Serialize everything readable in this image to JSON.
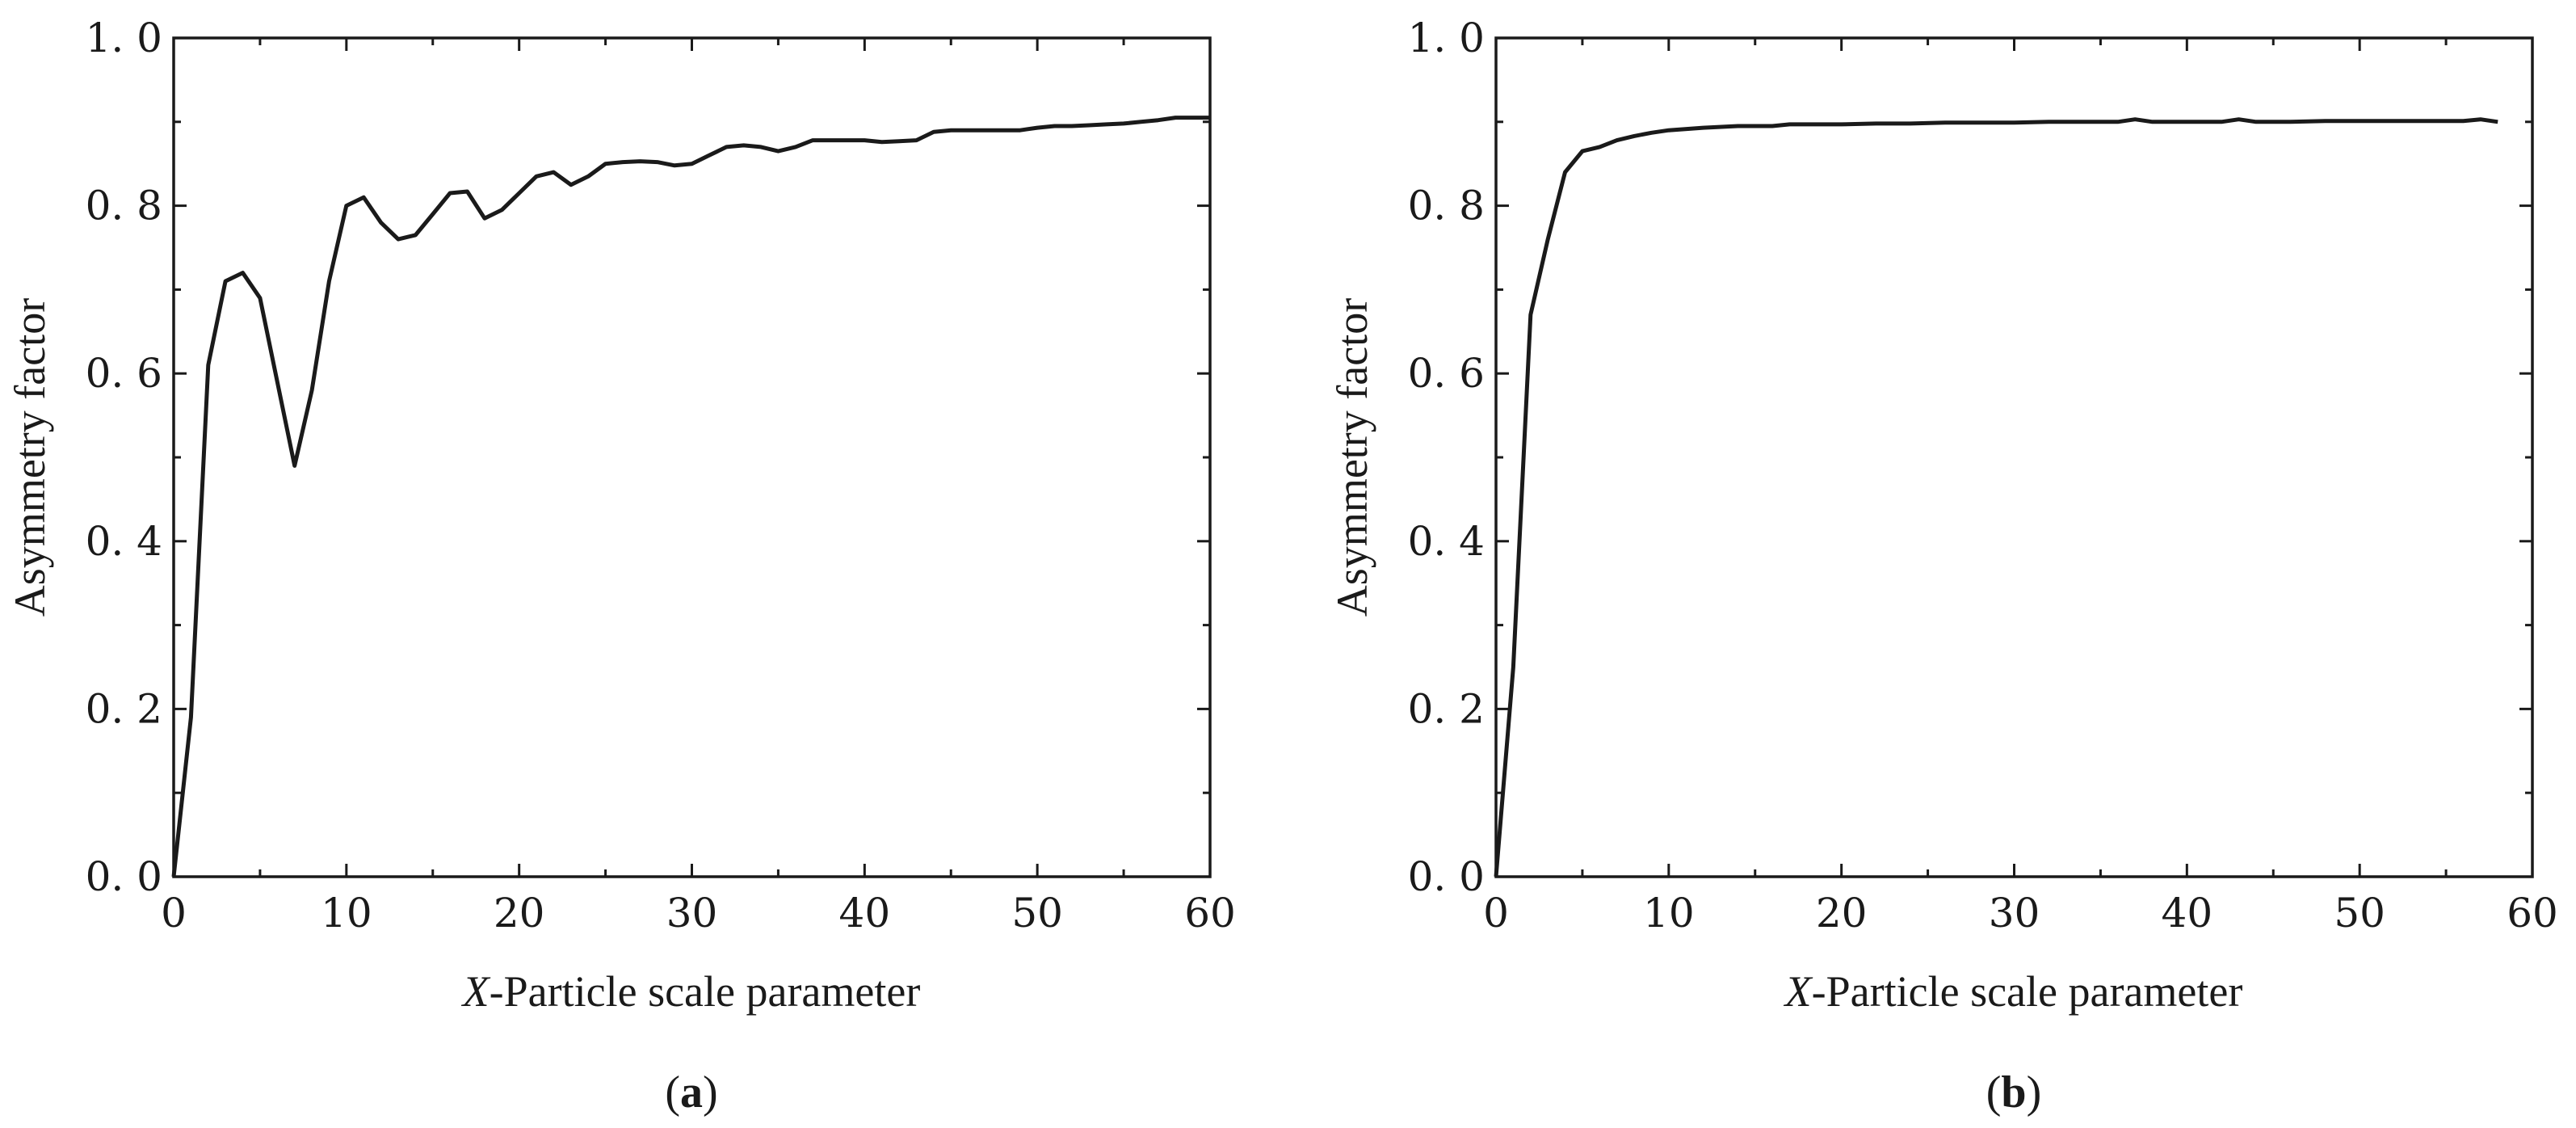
{
  "chart_data": [
    {
      "type": "line",
      "panel_label": {
        "open": "(",
        "letter": "a",
        "close": ")"
      },
      "xlabel": {
        "italic": "X",
        "rest": "-Particle scale parameter"
      },
      "ylabel": "Asymmetry factor",
      "xlim": [
        0,
        60
      ],
      "ylim": [
        0,
        1
      ],
      "xticks": [
        0,
        10,
        20,
        30,
        40,
        50,
        60
      ],
      "xtick_labels": [
        "0",
        "10",
        "20",
        "30",
        "40",
        "50",
        "60"
      ],
      "yticks": [
        0,
        0.2,
        0.4,
        0.6,
        0.8,
        1.0
      ],
      "ytick_labels": [
        "0. 0",
        "0. 2",
        "0. 4",
        "0. 6",
        "0. 8",
        "1. 0"
      ],
      "grid": false,
      "series": [
        {
          "x": [
            0,
            1,
            2,
            3,
            4,
            5,
            6,
            7,
            8,
            9,
            10,
            11,
            12,
            13,
            14,
            15,
            16,
            17,
            18,
            19,
            20,
            21,
            22,
            23,
            24,
            25,
            26,
            27,
            28,
            29,
            30,
            31,
            32,
            33,
            34,
            35,
            36,
            37,
            38,
            39,
            40,
            41,
            42,
            43,
            44,
            45,
            46,
            47,
            48,
            49,
            50,
            51,
            52,
            53,
            54,
            55,
            56,
            57,
            58,
            59,
            60
          ],
          "y": [
            0.0,
            0.19,
            0.61,
            0.71,
            0.72,
            0.69,
            0.59,
            0.49,
            0.58,
            0.71,
            0.8,
            0.81,
            0.78,
            0.76,
            0.765,
            0.79,
            0.815,
            0.817,
            0.785,
            0.795,
            0.815,
            0.835,
            0.84,
            0.825,
            0.835,
            0.85,
            0.852,
            0.853,
            0.852,
            0.848,
            0.85,
            0.86,
            0.87,
            0.872,
            0.87,
            0.865,
            0.87,
            0.878,
            0.878,
            0.878,
            0.878,
            0.876,
            0.877,
            0.878,
            0.888,
            0.89,
            0.89,
            0.89,
            0.89,
            0.89,
            0.893,
            0.895,
            0.895,
            0.896,
            0.897,
            0.898,
            0.9,
            0.902,
            0.905,
            0.905,
            0.905
          ]
        }
      ]
    },
    {
      "type": "line",
      "panel_label": {
        "open": "(",
        "letter": "b",
        "close": ")"
      },
      "xlabel": {
        "italic": "X",
        "rest": "-Particle scale parameter"
      },
      "ylabel": "Asymmetry factor",
      "xlim": [
        0,
        60
      ],
      "ylim": [
        0,
        1
      ],
      "xticks": [
        0,
        10,
        20,
        30,
        40,
        50,
        60
      ],
      "xtick_labels": [
        "0",
        "10",
        "20",
        "30",
        "40",
        "50",
        "60"
      ],
      "yticks": [
        0,
        0.2,
        0.4,
        0.6,
        0.8,
        1.0
      ],
      "ytick_labels": [
        "0. 0",
        "0. 2",
        "0. 4",
        "0. 6",
        "0. 8",
        "1. 0"
      ],
      "grid": false,
      "series": [
        {
          "x": [
            0,
            1,
            2,
            3,
            4,
            5,
            6,
            7,
            8,
            9,
            10,
            12,
            14,
            16,
            17,
            18,
            20,
            22,
            24,
            26,
            28,
            30,
            32,
            34,
            36,
            37,
            38,
            40,
            42,
            43,
            44,
            46,
            48,
            50,
            52,
            54,
            56,
            57,
            58
          ],
          "y": [
            0.0,
            0.25,
            0.67,
            0.76,
            0.84,
            0.865,
            0.87,
            0.878,
            0.883,
            0.887,
            0.89,
            0.893,
            0.895,
            0.895,
            0.897,
            0.897,
            0.897,
            0.898,
            0.898,
            0.899,
            0.899,
            0.899,
            0.9,
            0.9,
            0.9,
            0.903,
            0.9,
            0.9,
            0.9,
            0.903,
            0.9,
            0.9,
            0.901,
            0.901,
            0.901,
            0.901,
            0.901,
            0.903,
            0.9
          ]
        }
      ]
    }
  ]
}
